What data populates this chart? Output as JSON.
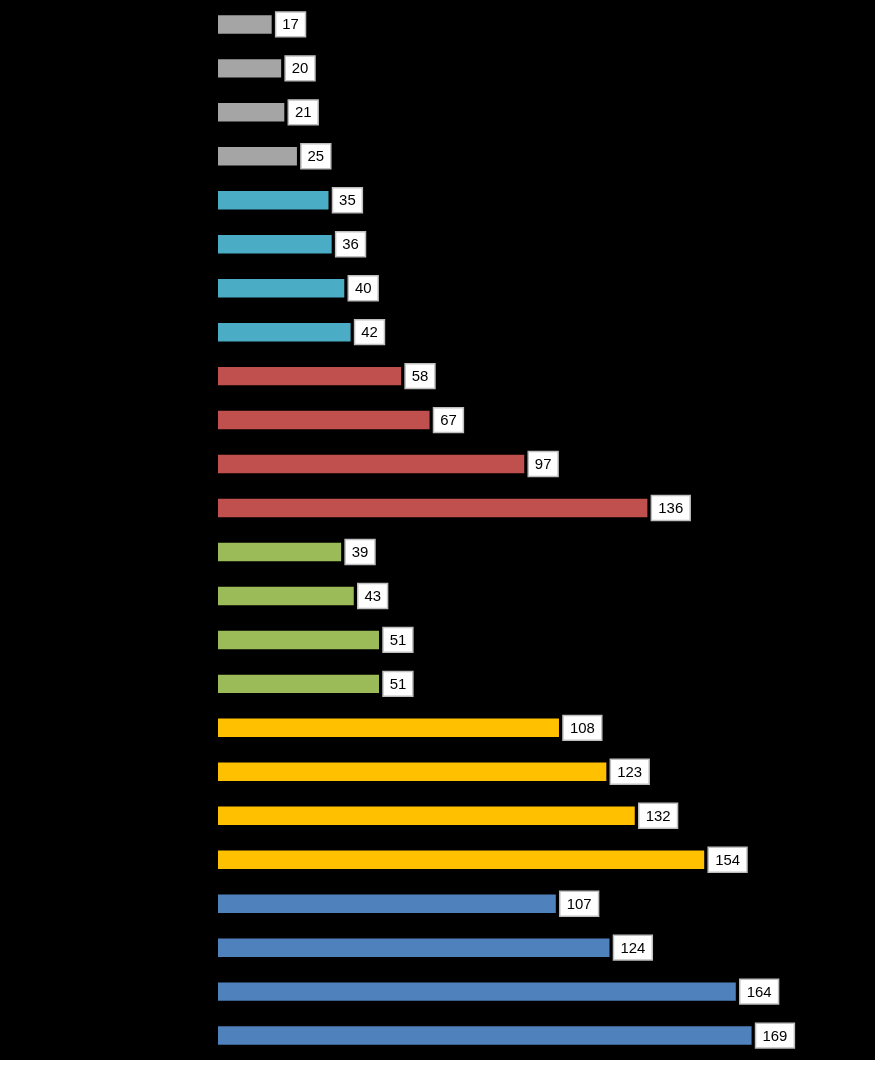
{
  "chart_data": {
    "type": "bar",
    "orientation": "horizontal",
    "data_labels": true,
    "categories": [
      null,
      null,
      null,
      null,
      null,
      null,
      null,
      null,
      null,
      null,
      null,
      null,
      null,
      null,
      null,
      null,
      null,
      null,
      null,
      null,
      null,
      null,
      null,
      null
    ],
    "values": [
      17,
      20,
      21,
      25,
      35,
      36,
      40,
      42,
      58,
      67,
      97,
      136,
      39,
      43,
      51,
      51,
      108,
      123,
      132,
      154,
      107,
      124,
      164,
      169
    ],
    "colors": [
      "#a5a5a5",
      "#a5a5a5",
      "#a5a5a5",
      "#a5a5a5",
      "#4bacc6",
      "#4bacc6",
      "#4bacc6",
      "#4bacc6",
      "#c0504d",
      "#c0504d",
      "#c0504d",
      "#c0504d",
      "#9bbb59",
      "#9bbb59",
      "#9bbb59",
      "#9bbb59",
      "#ffc000",
      "#ffc000",
      "#ffc000",
      "#ffc000",
      "#4f81bd",
      "#4f81bd",
      "#4f81bd",
      "#4f81bd"
    ]
  }
}
